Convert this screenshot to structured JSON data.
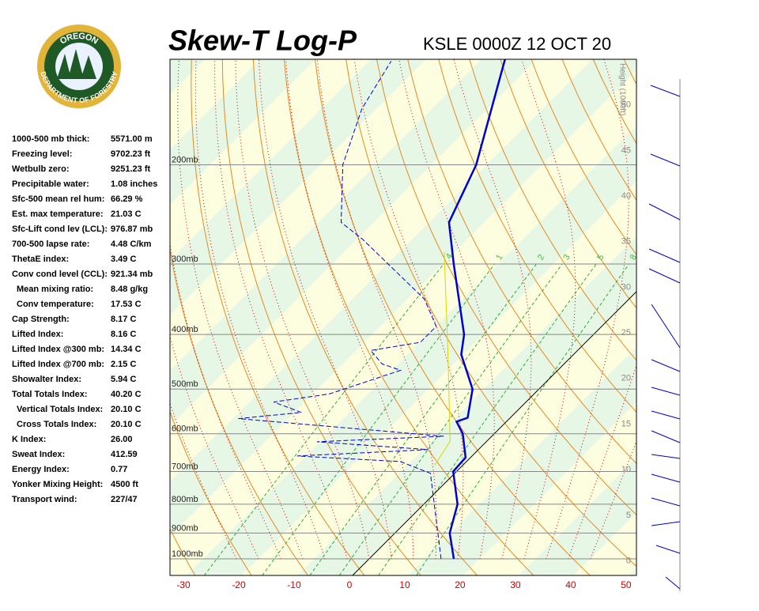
{
  "logo": {
    "top": "OREGON",
    "bottom": "DEPARTMENT OF FORESTRY"
  },
  "stats": [
    {
      "label": "1000-500 mb thick:",
      "value": "5571.00 m"
    },
    {
      "label": "Freezing level:",
      "value": "9702.23 ft"
    },
    {
      "label": "Wetbulb zero:",
      "value": "9251.23 ft"
    },
    {
      "label": "Precipitable water:",
      "value": "1.08 inches"
    },
    {
      "label": "Sfc-500 mean rel hum:",
      "value": "66.29 %"
    },
    {
      "label": "Est. max temperature:",
      "value": "21.03 C"
    },
    {
      "label": "Sfc-Lift cond lev (LCL):",
      "value": "976.87 mb"
    },
    {
      "label": "700-500 lapse rate:",
      "value": "4.48 C/km"
    },
    {
      "label": "ThetaE index:",
      "value": "3.49 C"
    },
    {
      "label": "Conv cond level (CCL):",
      "value": "921.34 mb"
    },
    {
      "label": "Mean mixing ratio:",
      "value": "8.48 g/kg"
    },
    {
      "label": "Conv temperature:",
      "value": "17.53 C"
    },
    {
      "label": "Cap Strength:",
      "value": "8.17 C"
    },
    {
      "label": "Lifted Index:",
      "value": "8.16 C"
    },
    {
      "label": "Lifted Index @300 mb:",
      "value": "14.34 C"
    },
    {
      "label": "Lifted Index @700 mb:",
      "value": "2.15 C"
    },
    {
      "label": "Showalter Index:",
      "value": "5.94 C"
    },
    {
      "label": "Total Totals Index:",
      "value": "40.20 C"
    },
    {
      "label": "Vertical Totals Index:",
      "value": "20.10 C"
    },
    {
      "label": "Cross Totals Index:",
      "value": "20.10 C"
    },
    {
      "label": "K Index:",
      "value": "26.00"
    },
    {
      "label": "Sweat Index:",
      "value": "412.59"
    },
    {
      "label": "Energy Index:",
      "value": "0.77"
    },
    {
      "label": "Yonker Mixing Height:",
      "value": "4500 ft"
    },
    {
      "label": "Transport wind:",
      "value": "227/47"
    }
  ],
  "chart_data": {
    "type": "skewt",
    "title": "Skew-T Log-P",
    "subtitle": "KSLE 0000Z 12 OCT 20",
    "xlim": [
      -33,
      51.3
    ],
    "xticks": [
      -30,
      -20,
      -10,
      0,
      10,
      20,
      30,
      40,
      50
    ],
    "ylim": [
      1070,
      130
    ],
    "ylog": true,
    "yticks": [
      {
        "value": 1000,
        "label": "1000mb"
      },
      {
        "value": 900,
        "label": "900mb"
      },
      {
        "value": 800,
        "label": "800mb"
      },
      {
        "value": 700,
        "label": "700mb"
      },
      {
        "value": 600,
        "label": "600mb"
      },
      {
        "value": 500,
        "label": "500mb"
      },
      {
        "value": 400,
        "label": "400mb"
      },
      {
        "value": 300,
        "label": "300mb"
      },
      {
        "value": 200,
        "label": "200mb"
      }
    ],
    "y2label": "Height (1000ft)",
    "y2lim": [
      -1.6,
      55
    ],
    "y2ticks": [
      0,
      5,
      10,
      15,
      20,
      25,
      30,
      35,
      40,
      45,
      50
    ],
    "mixing_ratios": [
      {
        "value": 0.4,
        "label": ".4"
      },
      1,
      2,
      3,
      5,
      8
    ],
    "series": [
      {
        "name": "Temperature",
        "color": "#0000cc",
        "pressure": [
          1000,
          900,
          800,
          700,
          661,
          600,
          571,
          562,
          500,
          434,
          400,
          300,
          253,
          200,
          129
        ],
        "values": [
          15.3,
          9.9,
          6.1,
          -0.6,
          -0.9,
          -5.7,
          -9.0,
          -7.7,
          -12,
          -20.3,
          -23.4,
          -38,
          -46.4,
          -51.9,
          -66
        ]
      },
      {
        "name": "Dewpoint",
        "color": "#0000cc",
        "pressure": [
          1000,
          705,
          672,
          657,
          640,
          620,
          606,
          564,
          550,
          527,
          510,
          463,
          451,
          427,
          413,
          387,
          346,
          271,
          253,
          200,
          159,
          131
        ],
        "values": [
          13,
          -4.4,
          -12,
          -31.6,
          -9.1,
          -30.6,
          -8.7,
          -49,
          -38.7,
          -45.6,
          -37,
          -28.4,
          -32.9,
          -37.4,
          -29.9,
          -29.9,
          -37,
          -59,
          -65.9,
          -76,
          -82.7,
          -86
        ]
      },
      {
        "name": "Parcel",
        "color": "#d8d800",
        "pressure": [
          682,
          619,
          434,
          285
        ],
        "values": [
          -5.1,
          -6.6,
          -22.7,
          -42
        ]
      }
    ]
  }
}
